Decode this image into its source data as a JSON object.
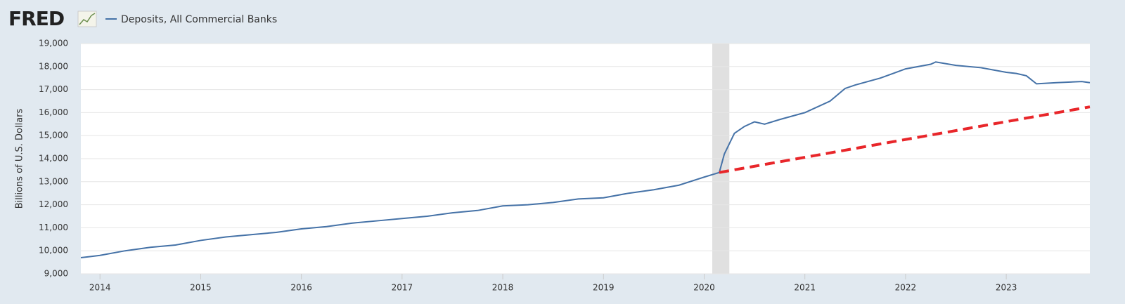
{
  "logo": "FRED",
  "chart_data": {
    "type": "line",
    "y_label": "Billions of U.S. Dollars",
    "xlim": [
      2013.81,
      2023.83
    ],
    "xticks": [
      2014,
      2015,
      2016,
      2017,
      2018,
      2019,
      2020,
      2021,
      2022,
      2023
    ],
    "ylim": [
      9000,
      19000
    ],
    "yticks": [
      {
        "value": 9000,
        "label": "9,000"
      },
      {
        "value": 10000,
        "label": "10,000"
      },
      {
        "value": 11000,
        "label": "11,000"
      },
      {
        "value": 12000,
        "label": "12,000"
      },
      {
        "value": 13000,
        "label": "13,000"
      },
      {
        "value": 14000,
        "label": "14,000"
      },
      {
        "value": 15000,
        "label": "15,000"
      },
      {
        "value": 16000,
        "label": "16,000"
      },
      {
        "value": 17000,
        "label": "17,000"
      },
      {
        "value": 18000,
        "label": "18,000"
      },
      {
        "value": 19000,
        "label": "19,000"
      }
    ],
    "grid": true,
    "shaded_regions": [
      [
        2020.08,
        2020.25
      ]
    ],
    "series": [
      {
        "name": "Deposits, All Commercial Banks",
        "color": "#4572a7",
        "dash": false,
        "x": [
          2013.81,
          2014.0,
          2014.25,
          2014.5,
          2014.75,
          2015.0,
          2015.25,
          2015.5,
          2015.75,
          2016.0,
          2016.25,
          2016.5,
          2016.75,
          2017.0,
          2017.25,
          2017.5,
          2017.75,
          2018.0,
          2018.25,
          2018.5,
          2018.75,
          2019.0,
          2019.25,
          2019.5,
          2019.75,
          2020.0,
          2020.15,
          2020.2,
          2020.3,
          2020.4,
          2020.5,
          2020.6,
          2020.75,
          2021.0,
          2021.25,
          2021.4,
          2021.5,
          2021.75,
          2022.0,
          2022.25,
          2022.3,
          2022.5,
          2022.75,
          2023.0,
          2023.1,
          2023.2,
          2023.3,
          2023.5,
          2023.75,
          2023.83
        ],
        "values": [
          9700,
          9800,
          10000,
          10150,
          10250,
          10450,
          10600,
          10700,
          10800,
          10950,
          11050,
          11200,
          11300,
          11400,
          11500,
          11650,
          11750,
          11950,
          12000,
          12100,
          12250,
          12300,
          12500,
          12650,
          12850,
          13200,
          13400,
          14200,
          15100,
          15400,
          15600,
          15500,
          15700,
          16000,
          16500,
          17050,
          17200,
          17500,
          17900,
          18100,
          18200,
          18050,
          17950,
          17750,
          17700,
          17600,
          17250,
          17300,
          17350,
          17300
        ]
      },
      {
        "color": "#e8262a",
        "dash": true,
        "x": [
          2020.15,
          2023.83
        ],
        "values": [
          13400,
          16250
        ]
      }
    ]
  }
}
